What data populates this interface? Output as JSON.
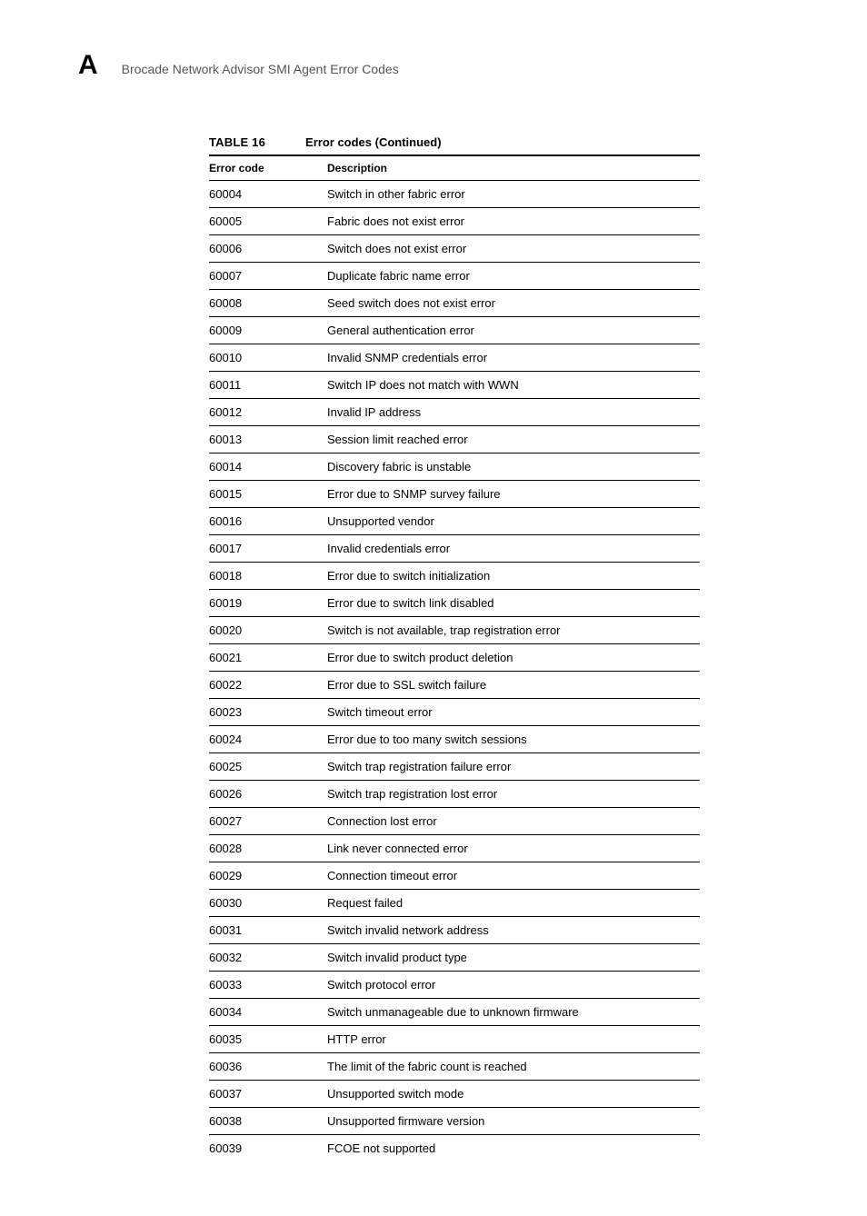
{
  "header": {
    "appendix_letter": "A",
    "section_title": "Brocade Network Advisor SMI Agent Error Codes"
  },
  "table": {
    "caption_label": "TABLE 16",
    "caption_title": "Error codes (Continued)",
    "columns": [
      "Error code",
      "Description"
    ],
    "rows": [
      [
        "60004",
        "Switch in other fabric error"
      ],
      [
        "60005",
        "Fabric does not exist error"
      ],
      [
        "60006",
        "Switch does not exist error"
      ],
      [
        "60007",
        "Duplicate fabric name error"
      ],
      [
        "60008",
        "Seed switch does not exist error"
      ],
      [
        "60009",
        "General authentication error"
      ],
      [
        "60010",
        "Invalid SNMP credentials error"
      ],
      [
        "60011",
        "Switch IP does not match with WWN"
      ],
      [
        "60012",
        "Invalid IP address"
      ],
      [
        "60013",
        "Session limit reached error"
      ],
      [
        "60014",
        "Discovery fabric is unstable"
      ],
      [
        "60015",
        "Error due to SNMP survey failure"
      ],
      [
        "60016",
        "Unsupported vendor"
      ],
      [
        "60017",
        "Invalid credentials error"
      ],
      [
        "60018",
        "Error due to switch initialization"
      ],
      [
        "60019",
        "Error due to switch link disabled"
      ],
      [
        "60020",
        "Switch is not available, trap registration error"
      ],
      [
        "60021",
        "Error due to switch product deletion"
      ],
      [
        "60022",
        "Error due to SSL switch failure"
      ],
      [
        "60023",
        "Switch timeout error"
      ],
      [
        "60024",
        "Error due to too many switch sessions"
      ],
      [
        "60025",
        "Switch trap registration failure error"
      ],
      [
        "60026",
        "Switch trap registration lost error"
      ],
      [
        "60027",
        "Connection lost error"
      ],
      [
        "60028",
        "Link never connected error"
      ],
      [
        "60029",
        "Connection timeout error"
      ],
      [
        "60030",
        "Request failed"
      ],
      [
        "60031",
        "Switch invalid network address"
      ],
      [
        "60032",
        "Switch invalid product type"
      ],
      [
        "60033",
        "Switch protocol error"
      ],
      [
        "60034",
        "Switch unmanageable due to unknown firmware"
      ],
      [
        "60035",
        "HTTP error"
      ],
      [
        "60036",
        "The limit of the fabric count is reached"
      ],
      [
        "60037",
        "Unsupported switch mode"
      ],
      [
        "60038",
        "Unsupported firmware version"
      ],
      [
        "60039",
        "FCOE not supported"
      ]
    ]
  },
  "style": {
    "page_bg": "#ffffff",
    "text_color": "#000000",
    "muted_text": "#555555",
    "rule_color": "#000000",
    "body_fontsize": 13,
    "header_fontsize": 12,
    "appendix_fontsize": 30
  }
}
